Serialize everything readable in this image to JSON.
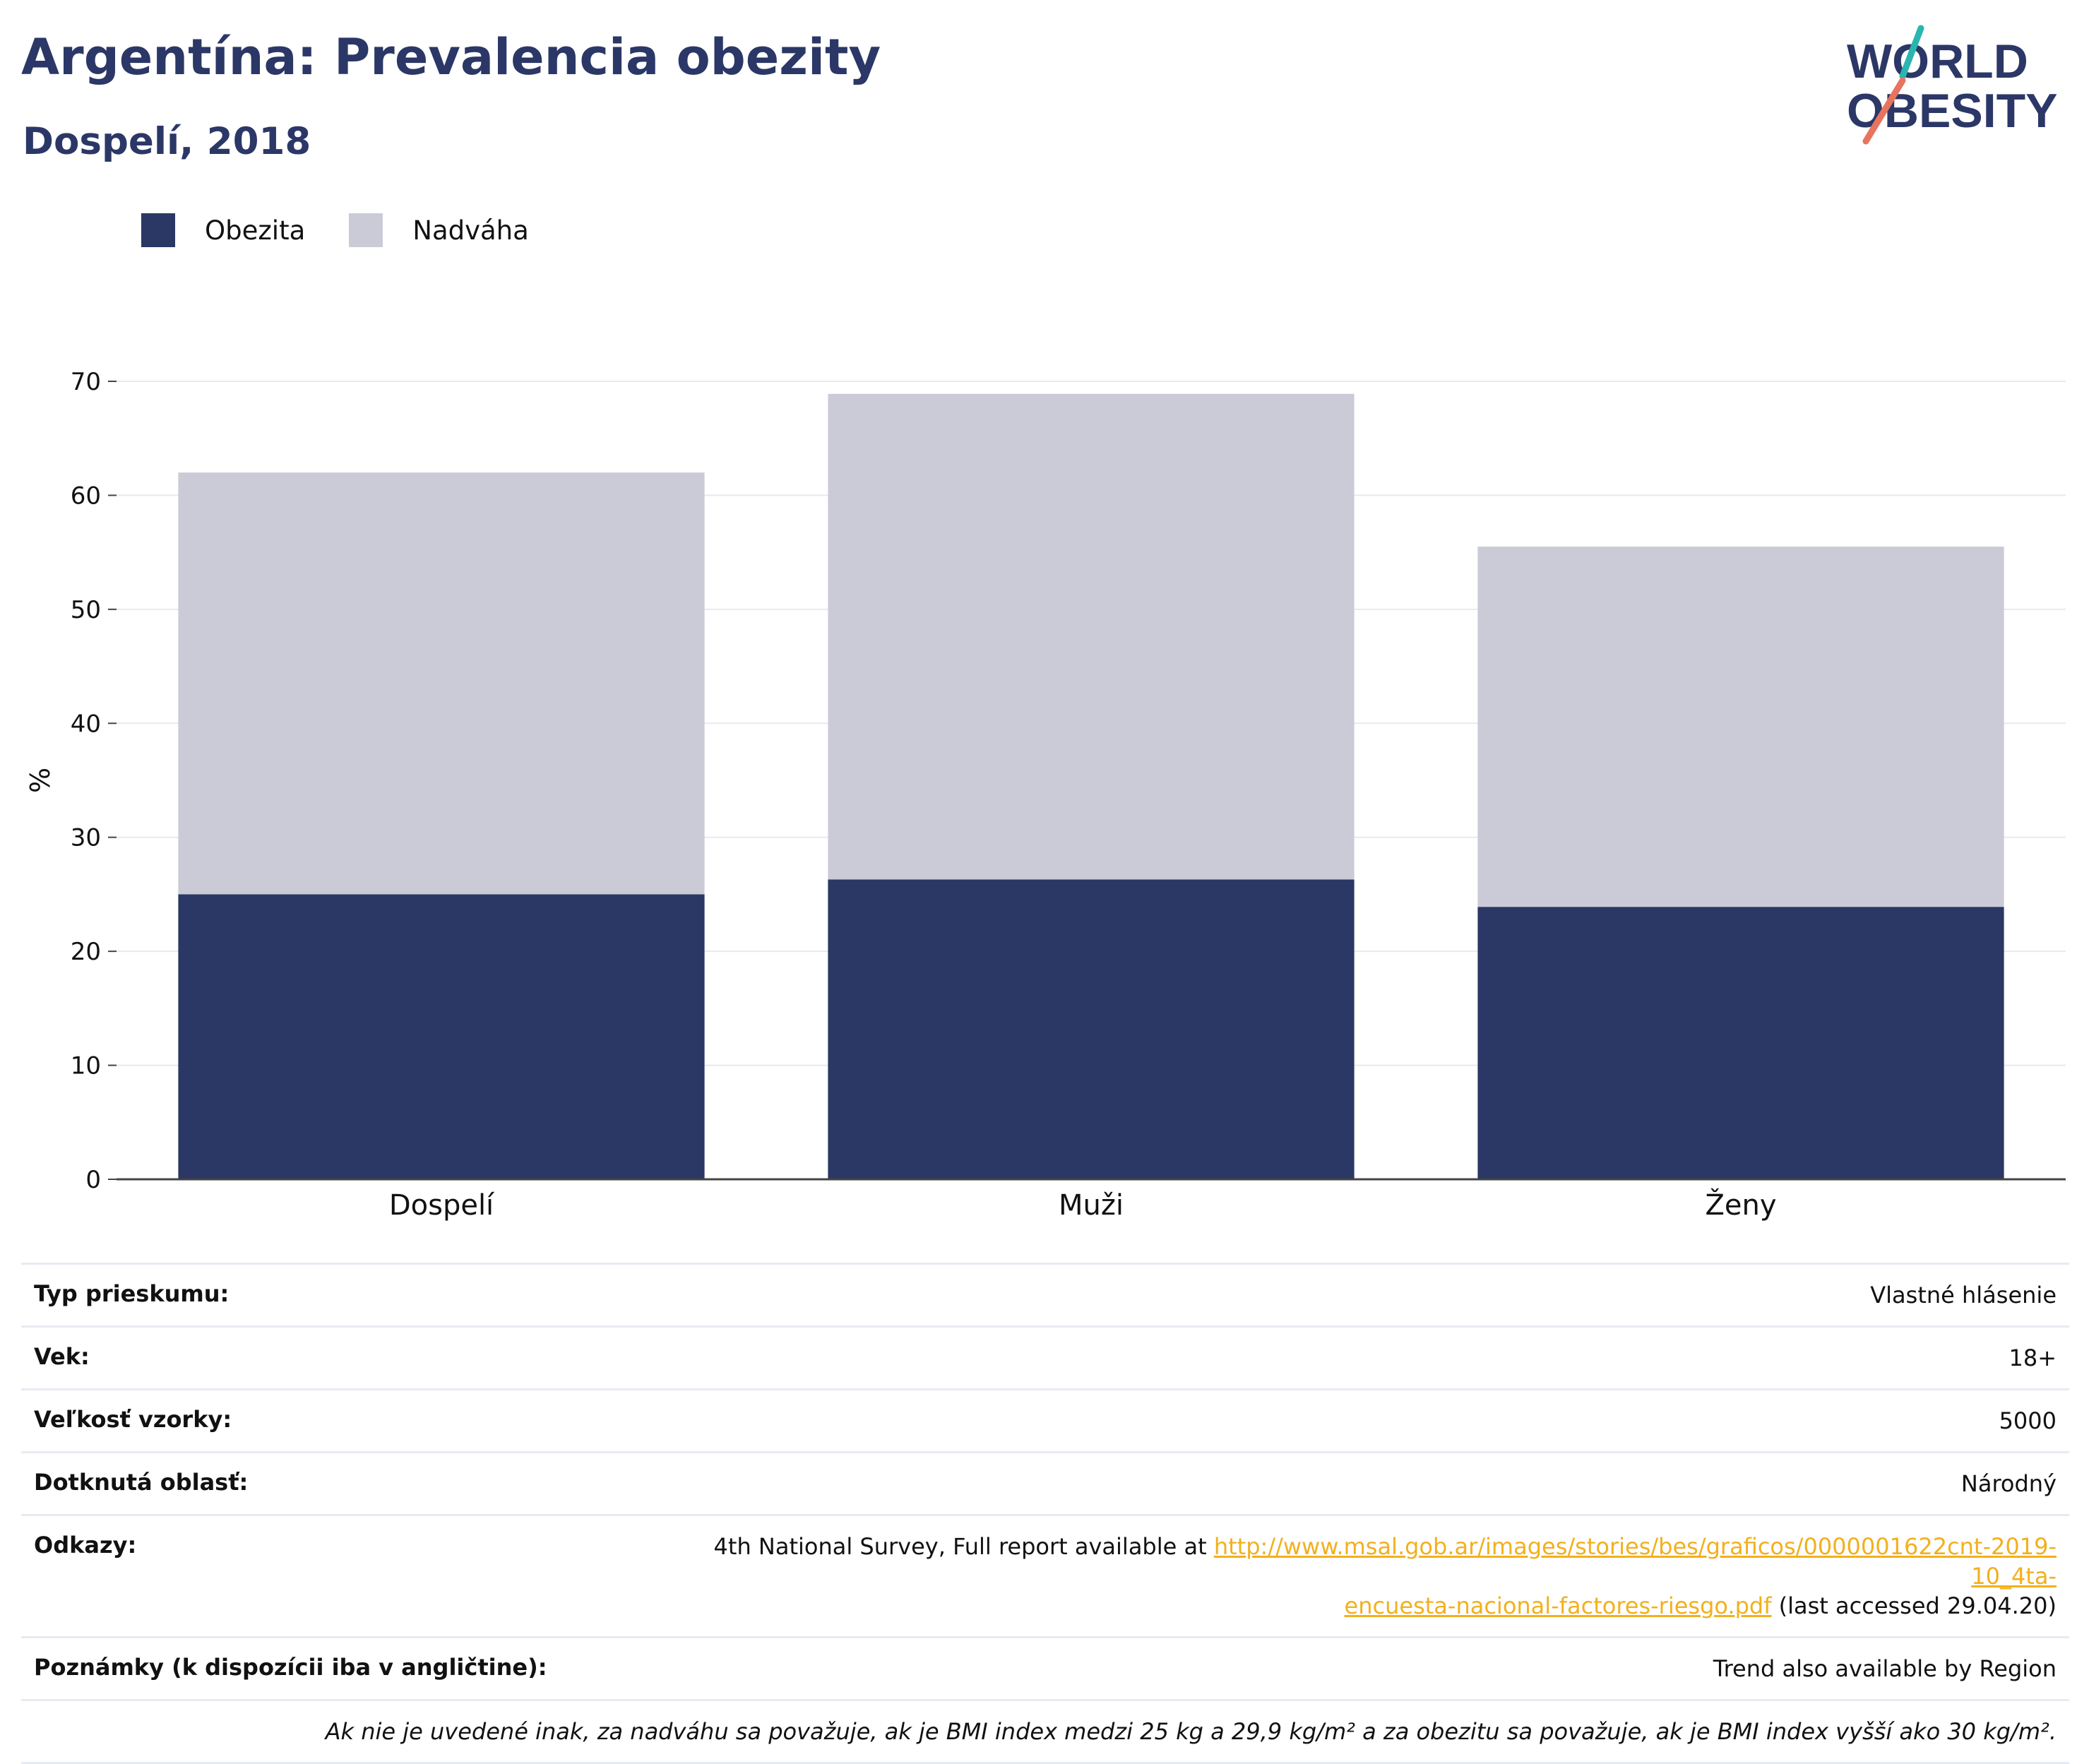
{
  "header": {
    "title": "Argentína: Prevalencia obezity",
    "subtitle": "Dospelí, 2018"
  },
  "logo": {
    "line1": "WORLD",
    "line2": "OBESITY",
    "colors": {
      "text": "#2b3766",
      "slash_top": "#2bb5b0",
      "slash_bottom": "#e8735e"
    }
  },
  "colors": {
    "obesity": "#2b3764",
    "overweight": "#cacbd6",
    "grid": "#e8e9ef",
    "axis": "#444444"
  },
  "legend": [
    {
      "label": "Obezita",
      "color": "#2b3764"
    },
    {
      "label": "Nadváha",
      "color": "#cacbd6"
    }
  ],
  "chart_data": {
    "type": "bar",
    "stacked": true,
    "categories": [
      "Dospelí",
      "Muži",
      "Ženy"
    ],
    "series": [
      {
        "name": "Obezita",
        "values": [
          25.0,
          26.3,
          23.9
        ],
        "color": "#2b3764"
      },
      {
        "name": "Nadváha",
        "values": [
          37.0,
          42.6,
          31.6
        ],
        "color": "#cacbd6"
      }
    ],
    "ylabel": "%",
    "ylim": [
      0,
      70
    ],
    "yticks": [
      0,
      10,
      20,
      30,
      40,
      50,
      60,
      70
    ],
    "grid": true,
    "legend_position": "top-left"
  },
  "info": [
    {
      "label": "Typ prieskumu:",
      "value": "Vlastné hlásenie"
    },
    {
      "label": "Vek:",
      "value": "18+"
    },
    {
      "label": "Veľkosť vzorky:",
      "value": "5000"
    },
    {
      "label": "Dotknutá oblasť:",
      "value": "Národný"
    }
  ],
  "references": {
    "label": "Odkazy:",
    "prefix": "4th National Survey, Full report available at ",
    "link_line1": "http://www.msal.gob.ar/images/stories/bes/graficos/0000001622cnt-2019-10_4ta-",
    "link_line2": "encuesta-nacional-factores-riesgo.pdf",
    "suffix": " (last accessed 29.04.20)"
  },
  "notes": {
    "label": "Poznámky (k dispozícii iba v angličtine):",
    "value": "Trend also available by Region"
  },
  "footnote": "Ak nie je uvedené inak, za nadváhu sa považuje, ak je BMI index medzi 25 kg a 29,9 kg/m² a za obezitu sa považuje, ak je BMI index vyšší ako 30 kg/m²."
}
